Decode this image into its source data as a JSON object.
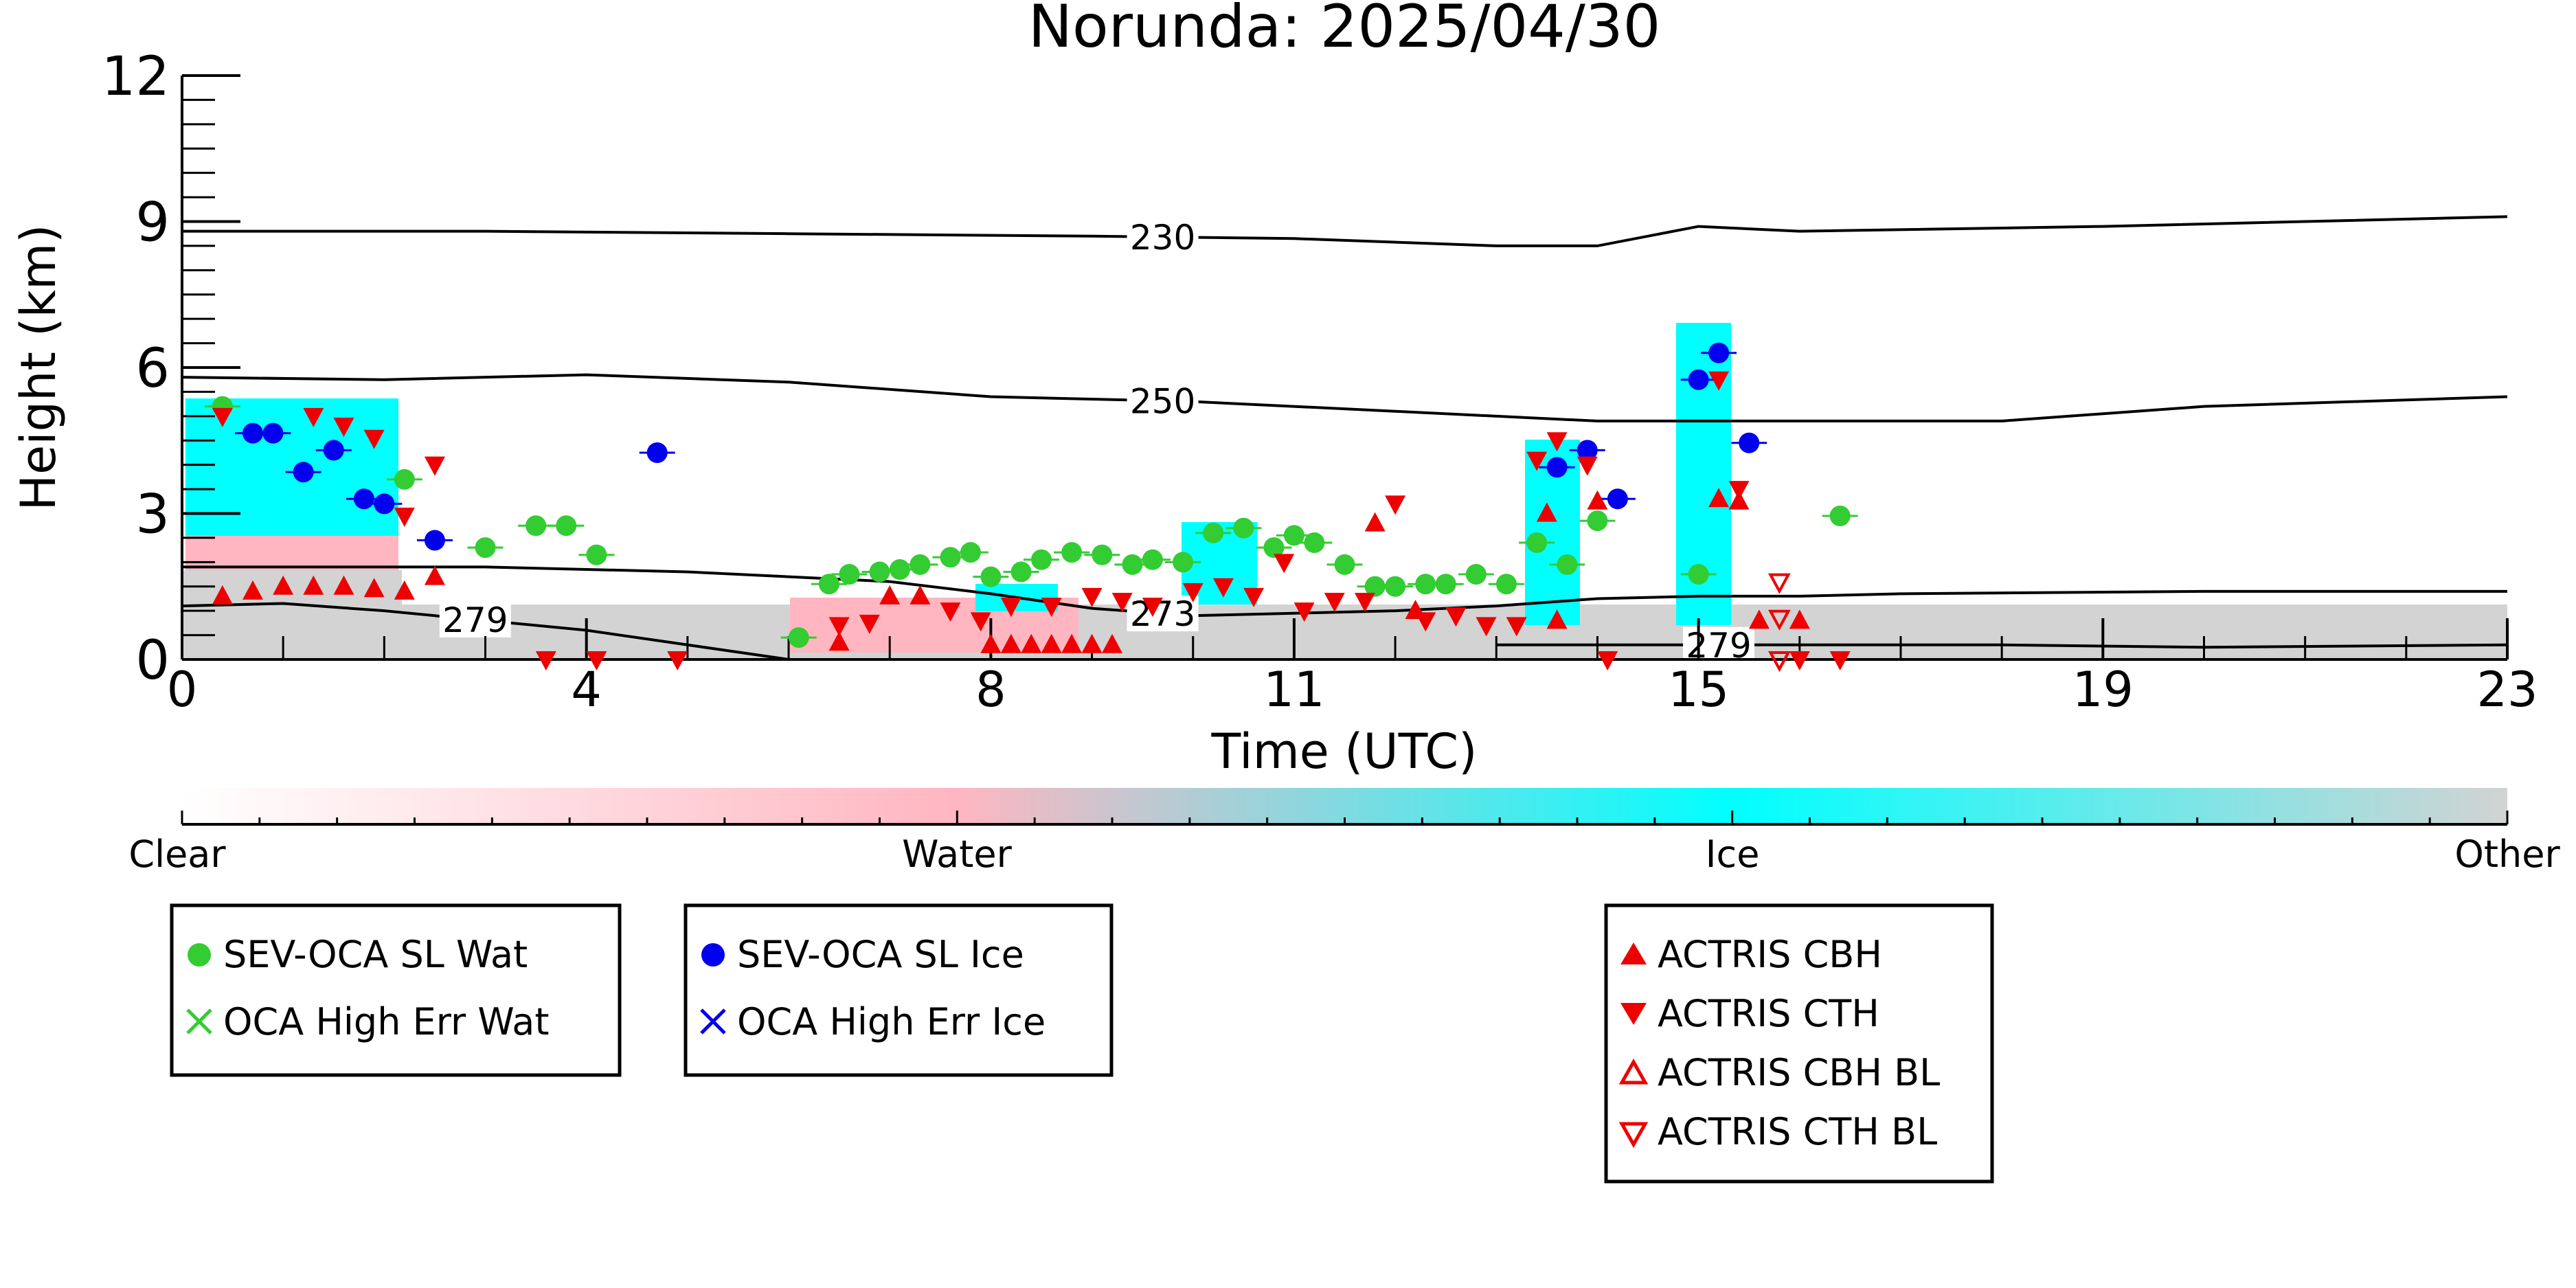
{
  "chart_data": {
    "type": "scatter",
    "title": "Norunda: 2025/04/30",
    "xlabel": "Time (UTC)",
    "ylabel": "Height (km)",
    "xlim": [
      0,
      23
    ],
    "ylim": [
      0,
      12
    ],
    "x_ticks": [
      0,
      4,
      8,
      11,
      15,
      19,
      23
    ],
    "y_ticks": [
      0,
      3,
      6,
      9,
      12
    ],
    "grid": false,
    "colorbar": {
      "labels": [
        "Clear",
        "Water",
        "Ice",
        "Other"
      ],
      "colors": [
        "#ffffff",
        "#ffb6c1",
        "#00ffff",
        "#d3d3d3"
      ]
    },
    "temperature_contours": [
      {
        "label": "230",
        "label_x": 9.7,
        "points": [
          [
            0,
            8.8
          ],
          [
            3,
            8.8
          ],
          [
            6,
            8.75
          ],
          [
            9,
            8.7
          ],
          [
            11,
            8.65
          ],
          [
            13,
            8.5
          ],
          [
            14,
            8.5
          ],
          [
            15,
            8.9
          ],
          [
            16,
            8.8
          ],
          [
            19,
            8.9
          ],
          [
            23,
            9.1
          ]
        ]
      },
      {
        "label": "250",
        "label_x": 9.7,
        "points": [
          [
            0,
            5.8
          ],
          [
            2,
            5.75
          ],
          [
            4,
            5.85
          ],
          [
            6,
            5.7
          ],
          [
            8,
            5.4
          ],
          [
            10,
            5.3
          ],
          [
            12,
            5.1
          ],
          [
            14,
            4.9
          ],
          [
            16,
            4.9
          ],
          [
            18,
            4.9
          ],
          [
            20,
            5.2
          ],
          [
            23,
            5.4
          ]
        ]
      },
      {
        "label": "273",
        "label_x": 9.7,
        "points": [
          [
            0,
            1.9
          ],
          [
            3,
            1.9
          ],
          [
            5,
            1.8
          ],
          [
            7,
            1.6
          ],
          [
            8,
            1.35
          ],
          [
            9,
            1.05
          ],
          [
            10,
            0.9
          ],
          [
            11,
            0.95
          ],
          [
            12,
            1.0
          ],
          [
            13,
            1.1
          ],
          [
            14,
            1.25
          ],
          [
            15,
            1.3
          ],
          [
            16,
            1.3
          ],
          [
            17,
            1.35
          ],
          [
            20,
            1.4
          ],
          [
            23,
            1.4
          ]
        ]
      },
      {
        "label": "279",
        "label_x": 2.9,
        "points": [
          [
            0,
            1.1
          ],
          [
            1,
            1.15
          ],
          [
            2,
            1.0
          ],
          [
            3,
            0.8
          ],
          [
            4,
            0.6
          ],
          [
            5,
            0.3
          ],
          [
            6,
            0.0
          ]
        ]
      },
      {
        "label": "279",
        "label_x": 15.2,
        "points": [
          [
            13,
            0.3
          ],
          [
            15,
            0.3
          ],
          [
            18,
            0.3
          ],
          [
            20,
            0.25
          ],
          [
            23,
            0.3
          ]
        ]
      }
    ],
    "series": [
      {
        "name": "SEV-OCA SL Wat",
        "marker": "circle",
        "color": "#33cc33",
        "points": [
          [
            0.4,
            5.2
          ],
          [
            2.2,
            3.7
          ],
          [
            3.0,
            2.3
          ],
          [
            3.5,
            2.75
          ],
          [
            3.8,
            2.75
          ],
          [
            4.1,
            2.15
          ],
          [
            6.1,
            0.45
          ],
          [
            6.4,
            1.55
          ],
          [
            6.6,
            1.75
          ],
          [
            6.9,
            1.8
          ],
          [
            7.1,
            1.85
          ],
          [
            7.3,
            1.95
          ],
          [
            7.6,
            2.1
          ],
          [
            7.8,
            2.2
          ],
          [
            8.0,
            1.7
          ],
          [
            8.3,
            1.8
          ],
          [
            8.5,
            2.05
          ],
          [
            8.8,
            2.2
          ],
          [
            9.1,
            2.15
          ],
          [
            9.4,
            1.95
          ],
          [
            9.6,
            2.05
          ],
          [
            9.9,
            2.0
          ],
          [
            10.2,
            2.6
          ],
          [
            10.5,
            2.7
          ],
          [
            10.8,
            2.3
          ],
          [
            11.0,
            2.55
          ],
          [
            11.2,
            2.4
          ],
          [
            11.5,
            1.95
          ],
          [
            11.8,
            1.5
          ],
          [
            12.0,
            1.5
          ],
          [
            12.3,
            1.55
          ],
          [
            12.5,
            1.55
          ],
          [
            12.8,
            1.75
          ],
          [
            13.1,
            1.55
          ],
          [
            13.4,
            2.4
          ],
          [
            13.7,
            1.95
          ],
          [
            14.0,
            2.85
          ],
          [
            15.0,
            1.75
          ],
          [
            16.4,
            2.95
          ]
        ]
      },
      {
        "name": "OCA High Err Wat",
        "marker": "x",
        "color": "#33cc33",
        "points": []
      },
      {
        "name": "SEV-OCA SL Ice",
        "marker": "circle",
        "color": "#0000ee",
        "points": [
          [
            0.7,
            4.65
          ],
          [
            0.9,
            4.65
          ],
          [
            1.2,
            3.85
          ],
          [
            1.5,
            4.3
          ],
          [
            1.8,
            3.3
          ],
          [
            2.0,
            3.2
          ],
          [
            2.5,
            2.45
          ],
          [
            4.7,
            4.25
          ],
          [
            13.6,
            3.95
          ],
          [
            13.9,
            4.3
          ],
          [
            14.2,
            3.3
          ],
          [
            15.0,
            5.75
          ],
          [
            15.2,
            6.3
          ],
          [
            15.5,
            4.45
          ]
        ]
      },
      {
        "name": "OCA High Err Ice",
        "marker": "x",
        "color": "#0000ee",
        "points": []
      },
      {
        "name": "ACTRIS CBH",
        "marker": "triangle-up",
        "color": "#ee0000",
        "points": [
          [
            0.4,
            1.3
          ],
          [
            0.7,
            1.4
          ],
          [
            1.0,
            1.5
          ],
          [
            1.3,
            1.5
          ],
          [
            1.6,
            1.5
          ],
          [
            1.9,
            1.45
          ],
          [
            2.2,
            1.4
          ],
          [
            2.5,
            1.7
          ],
          [
            6.5,
            0.35
          ],
          [
            7.0,
            1.3
          ],
          [
            7.3,
            1.3
          ],
          [
            8.0,
            0.3
          ],
          [
            8.2,
            0.3
          ],
          [
            8.4,
            0.3
          ],
          [
            8.6,
            0.3
          ],
          [
            8.8,
            0.3
          ],
          [
            9.0,
            0.3
          ],
          [
            9.2,
            0.3
          ],
          [
            11.8,
            2.8
          ],
          [
            12.2,
            1.0
          ],
          [
            13.5,
            3.0
          ],
          [
            13.6,
            0.8
          ],
          [
            14.0,
            3.25
          ],
          [
            15.2,
            3.3
          ],
          [
            15.4,
            3.25
          ],
          [
            15.6,
            0.8
          ],
          [
            16.0,
            0.8
          ]
        ]
      },
      {
        "name": "ACTRIS CTH",
        "marker": "triangle-down",
        "color": "#ee0000",
        "points": [
          [
            0.4,
            5.0
          ],
          [
            1.3,
            5.0
          ],
          [
            1.6,
            4.8
          ],
          [
            1.9,
            4.55
          ],
          [
            2.2,
            2.95
          ],
          [
            2.5,
            4.0
          ],
          [
            3.6,
            0.0
          ],
          [
            4.1,
            0.0
          ],
          [
            4.9,
            0.0
          ],
          [
            6.5,
            0.7
          ],
          [
            6.8,
            0.75
          ],
          [
            7.6,
            1.0
          ],
          [
            7.9,
            0.8
          ],
          [
            8.2,
            1.1
          ],
          [
            8.6,
            1.1
          ],
          [
            9.0,
            1.3
          ],
          [
            9.3,
            1.2
          ],
          [
            9.6,
            1.1
          ],
          [
            10.0,
            1.4
          ],
          [
            10.3,
            1.5
          ],
          [
            10.6,
            1.3
          ],
          [
            10.9,
            2.0
          ],
          [
            11.1,
            1.0
          ],
          [
            11.4,
            1.2
          ],
          [
            11.7,
            1.2
          ],
          [
            12.0,
            3.2
          ],
          [
            12.3,
            0.8
          ],
          [
            12.6,
            0.9
          ],
          [
            12.9,
            0.7
          ],
          [
            13.2,
            0.7
          ],
          [
            13.4,
            4.1
          ],
          [
            13.6,
            4.5
          ],
          [
            13.9,
            4.0
          ],
          [
            14.1,
            0.0
          ],
          [
            15.2,
            5.75
          ],
          [
            15.4,
            3.5
          ],
          [
            16.0,
            0.0
          ],
          [
            16.4,
            0.0
          ]
        ]
      },
      {
        "name": "ACTRIS CBH BL",
        "marker": "triangle-up-open",
        "color": "#ee0000",
        "points": []
      },
      {
        "name": "ACTRIS CTH BL",
        "marker": "triangle-down-open",
        "color": "#ee0000",
        "points": [
          [
            15.8,
            1.6
          ],
          [
            15.8,
            0.85
          ],
          [
            15.8,
            0.0
          ]
        ]
      }
    ],
    "legend_placement": "below"
  }
}
